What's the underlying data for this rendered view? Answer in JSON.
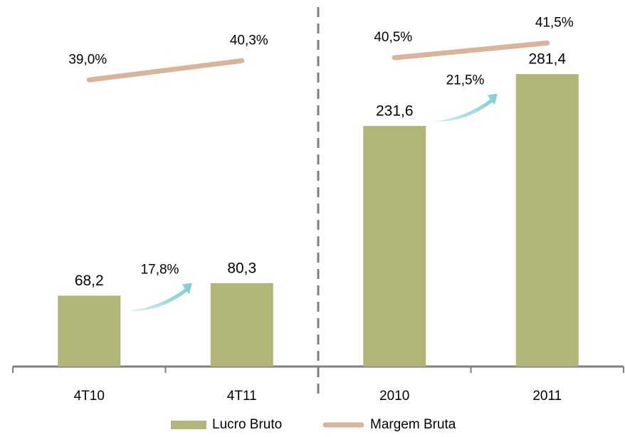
{
  "chart_data": {
    "type": "bar",
    "categories": [
      "4T10",
      "4T11",
      "2010",
      "2011"
    ],
    "series": [
      {
        "name": "Lucro Bruto",
        "type": "bar",
        "color": "#b1b577",
        "values": [
          68.2,
          80.3,
          231.6,
          281.4
        ],
        "value_labels": [
          "68,2",
          "80,3",
          "231,6",
          "281,4"
        ]
      },
      {
        "name": "Margem Bruta",
        "type": "line",
        "axis": "y2",
        "color": "#d9b39c",
        "values": [
          39.0,
          40.3,
          40.5,
          41.5
        ],
        "value_labels": [
          "39,0%",
          "40,3%",
          "40,5%",
          "41,5%"
        ]
      }
    ],
    "annotations": [
      "17,8%",
      "21,5%"
    ],
    "ylim": [
      0,
      300
    ],
    "y2lim": [
      19.6,
      40.7
    ],
    "grid": false,
    "legend": "bottom"
  }
}
